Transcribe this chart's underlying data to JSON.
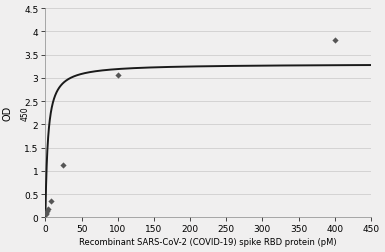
{
  "scatter_x": [
    0.5,
    1,
    2,
    4,
    8,
    25,
    100,
    400
  ],
  "scatter_y": [
    0.08,
    0.1,
    0.13,
    0.18,
    0.35,
    1.12,
    3.06,
    3.82
  ],
  "curve_Km": 3.5,
  "curve_Vmax": 3.3,
  "xlim": [
    0,
    450
  ],
  "ylim": [
    0,
    4.5
  ],
  "xticks": [
    0,
    50,
    100,
    150,
    200,
    250,
    300,
    350,
    400,
    450
  ],
  "yticks": [
    0,
    0.5,
    1.0,
    1.5,
    2.0,
    2.5,
    3.0,
    3.5,
    4.0,
    4.5
  ],
  "xlabel": "Recombinant SARS-CoV-2 (COVID-19) spike RBD protein (pM)",
  "ylabel": "OD",
  "ylabel_subscript": "450",
  "marker_color": "#555555",
  "line_color": "#1a1a1a",
  "background_color": "#f0efef",
  "plot_bg_color": "#f0efef"
}
